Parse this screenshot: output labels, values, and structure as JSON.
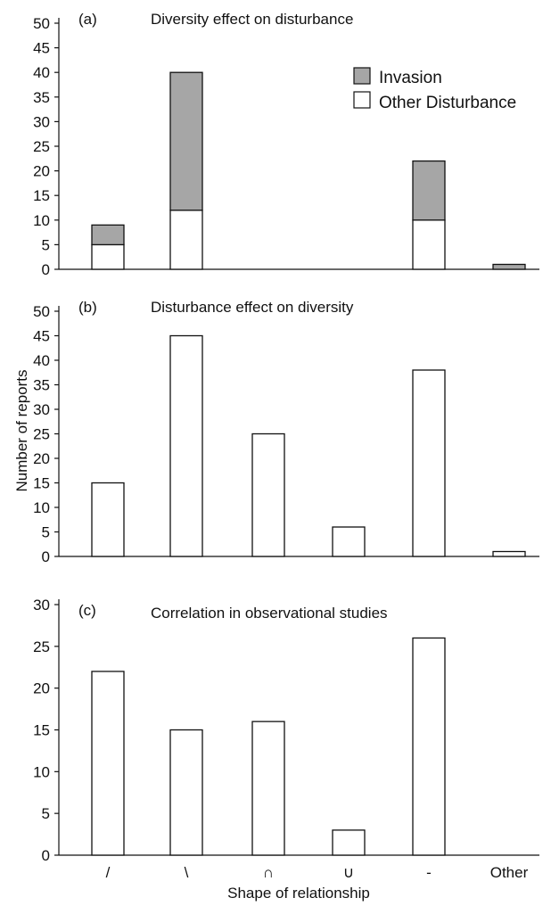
{
  "ylabel": "Number of reports",
  "xlabel": "Shape of relationship",
  "categories": [
    "/",
    "\\",
    "∩",
    "∪",
    "-",
    "Other"
  ],
  "colors": {
    "invasion": "#a6a6a6",
    "other": "#ffffff",
    "stroke": "#111111"
  },
  "legend": {
    "invasion": "Invasion",
    "other": "Other Disturbance"
  },
  "chart_data": [
    {
      "type": "bar",
      "stacked": true,
      "panel_label": "(a)",
      "title": "Diversity effect on disturbance",
      "categories": [
        "/",
        "\\",
        "∩",
        "∪",
        "-",
        "Other"
      ],
      "series": [
        {
          "name": "Other Disturbance",
          "values": [
            5,
            12,
            0,
            0,
            10,
            0
          ]
        },
        {
          "name": "Invasion",
          "values": [
            4,
            28,
            0,
            0,
            12,
            1
          ]
        }
      ],
      "ylim": [
        0,
        50
      ],
      "yticks": [
        0,
        5,
        10,
        15,
        20,
        25,
        30,
        35,
        40,
        45,
        50
      ],
      "legend_position": "top-right"
    },
    {
      "type": "bar",
      "panel_label": "(b)",
      "title": "Disturbance effect on diversity",
      "categories": [
        "/",
        "\\",
        "∩",
        "∪",
        "-",
        "Other"
      ],
      "values": [
        15,
        45,
        25,
        6,
        38,
        1
      ],
      "ylim": [
        0,
        50
      ],
      "yticks": [
        0,
        5,
        10,
        15,
        20,
        25,
        30,
        35,
        40,
        45,
        50
      ]
    },
    {
      "type": "bar",
      "panel_label": "(c)",
      "title": "Correlation in observational studies",
      "categories": [
        "/",
        "\\",
        "∩",
        "∪",
        "-",
        "Other"
      ],
      "values": [
        22,
        15,
        16,
        3,
        26,
        0
      ],
      "ylim": [
        0,
        30
      ],
      "yticks": [
        0,
        5,
        10,
        15,
        20,
        25,
        30
      ]
    }
  ]
}
